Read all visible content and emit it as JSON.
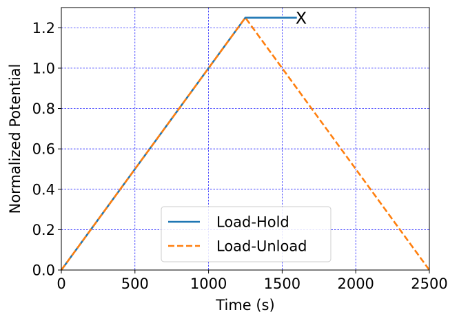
{
  "chart_data": {
    "type": "line",
    "title": "",
    "xlabel": "Time (s)",
    "ylabel": "Normalized Potential",
    "xlim": [
      0,
      2500
    ],
    "ylim": [
      0,
      1.3
    ],
    "xticks": [
      0,
      500,
      1000,
      1500,
      2000,
      2500
    ],
    "xtick_labels": [
      "0",
      "500",
      "1000",
      "1500",
      "2000",
      "2500"
    ],
    "yticks": [
      0,
      0.2,
      0.4,
      0.6,
      0.8,
      1.0,
      1.2
    ],
    "ytick_labels": [
      "0.0",
      "0.2",
      "0.4",
      "0.6",
      "0.8",
      "1.0",
      "1.2"
    ],
    "grid": true,
    "grid_color": "#0000ff",
    "legend_position": "lower-center",
    "series": [
      {
        "name": "Load-Hold",
        "color": "#1f77b4",
        "style": "solid",
        "x": [
          0,
          1250,
          1600
        ],
        "y": [
          0,
          1.25,
          1.25
        ]
      },
      {
        "name": "Load-Unload",
        "color": "#ff7f0e",
        "style": "dashed",
        "x": [
          0,
          1250,
          2500
        ],
        "y": [
          0,
          1.25,
          0
        ]
      }
    ],
    "annotations": [
      {
        "text": "X",
        "x": 1600,
        "y": 1.25
      }
    ]
  }
}
